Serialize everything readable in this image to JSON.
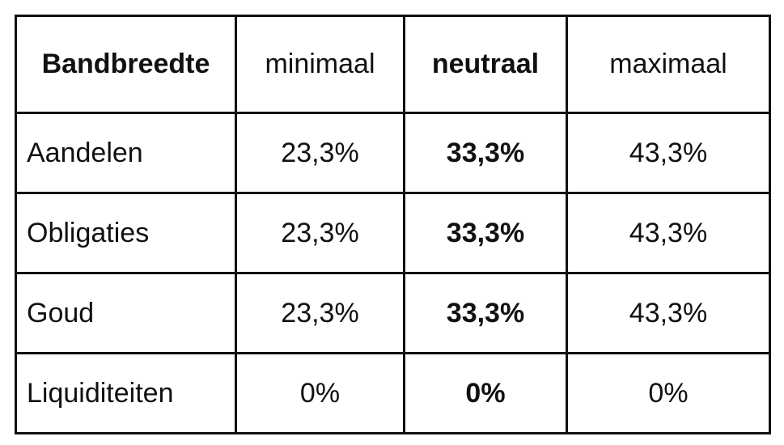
{
  "table": {
    "header": [
      "Bandbreedte",
      "minimaal",
      "neutraal",
      "maximaal"
    ],
    "rows": [
      [
        "Aandelen",
        "23,3%",
        "33,3%",
        "43,3%"
      ],
      [
        "Obligaties",
        "23,3%",
        "33,3%",
        "43,3%"
      ],
      [
        "Goud",
        "23,3%",
        "33,3%",
        "43,3%"
      ],
      [
        "Liquiditeiten",
        "0%",
        "0%",
        "0%"
      ]
    ]
  }
}
